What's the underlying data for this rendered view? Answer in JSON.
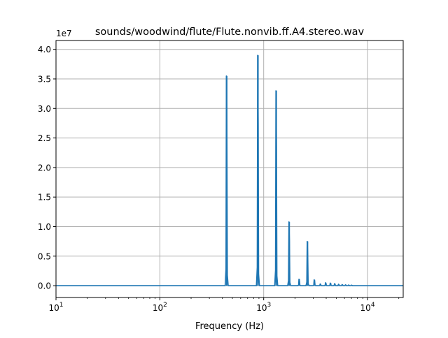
{
  "chart_data": {
    "type": "line",
    "title": "sounds/woodwind/flute/Flute.nonvib.ff.A4.stereo.wav",
    "xlabel": "Frequency (Hz)",
    "ylabel": "",
    "x_scale": "log",
    "xlim": [
      10,
      22050
    ],
    "ylim": [
      -2000000,
      41500000
    ],
    "y_offset_label": "1e7",
    "grid": true,
    "line_color": "#1f77b4",
    "x_ticks": [
      {
        "value": 10,
        "base": "10",
        "exp": "1"
      },
      {
        "value": 100,
        "base": "10",
        "exp": "2"
      },
      {
        "value": 1000,
        "base": "10",
        "exp": "3"
      },
      {
        "value": 10000,
        "base": "10",
        "exp": "4"
      }
    ],
    "y_ticks": [
      {
        "value": 0,
        "label": "0.0"
      },
      {
        "value": 5000000,
        "label": "0.5"
      },
      {
        "value": 10000000,
        "label": "1.0"
      },
      {
        "value": 15000000,
        "label": "1.5"
      },
      {
        "value": 20000000,
        "label": "2.0"
      },
      {
        "value": 25000000,
        "label": "2.5"
      },
      {
        "value": 30000000,
        "label": "3.0"
      },
      {
        "value": 35000000,
        "label": "3.5"
      },
      {
        "value": 40000000,
        "label": "4.0"
      }
    ],
    "series": [
      {
        "peaks": [
          {
            "freq": 440,
            "amplitude": 35500000
          },
          {
            "freq": 880,
            "amplitude": 39000000
          },
          {
            "freq": 1320,
            "amplitude": 33000000
          },
          {
            "freq": 1760,
            "amplitude": 10800000
          },
          {
            "freq": 2200,
            "amplitude": 1100000
          },
          {
            "freq": 2640,
            "amplitude": 7500000
          },
          {
            "freq": 3080,
            "amplitude": 1000000
          },
          {
            "freq": 3520,
            "amplitude": 300000
          },
          {
            "freq": 3960,
            "amplitude": 500000
          },
          {
            "freq": 4400,
            "amplitude": 450000
          },
          {
            "freq": 4840,
            "amplitude": 350000
          },
          {
            "freq": 5280,
            "amplitude": 250000
          },
          {
            "freq": 5720,
            "amplitude": 200000
          },
          {
            "freq": 6160,
            "amplitude": 150000
          },
          {
            "freq": 6600,
            "amplitude": 120000
          },
          {
            "freq": 7040,
            "amplitude": 100000
          }
        ]
      }
    ]
  }
}
